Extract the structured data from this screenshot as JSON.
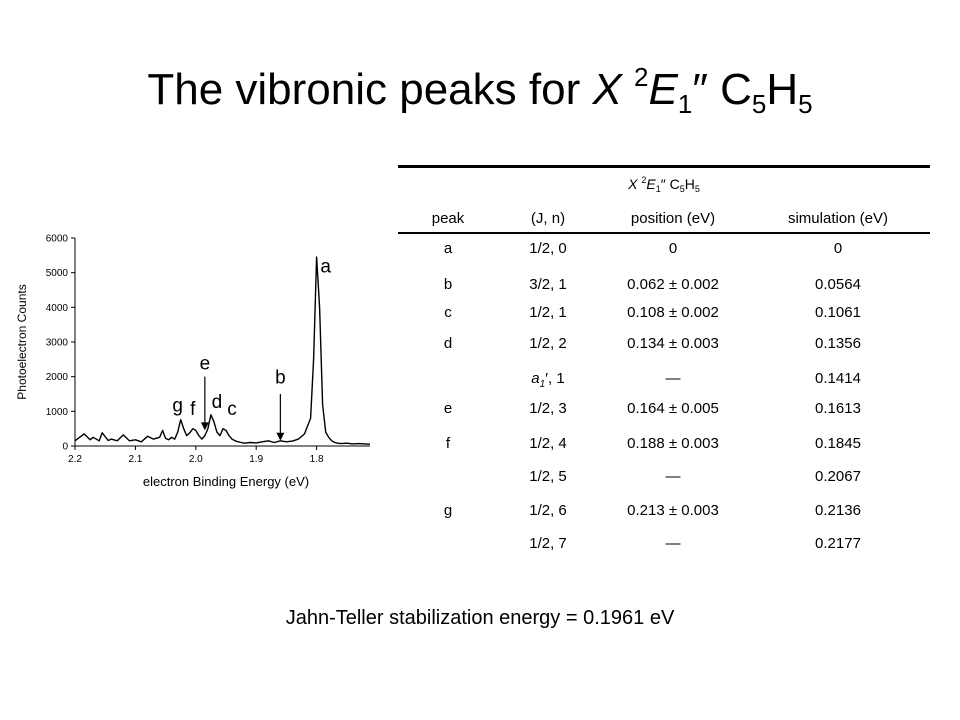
{
  "title": {
    "prefix": "The vibronic peaks for ",
    "state_letter": "X",
    "state_super": "2",
    "state_term": "E",
    "state_sub": "1",
    "state_prime": "″",
    "molecule_main": " C",
    "molecule_sub1": "5",
    "molecule_mid": "H",
    "molecule_sub2": "5"
  },
  "chart_data": {
    "type": "line",
    "title": "",
    "xlabel": "electron Binding Energy (eV)",
    "ylabel": "Photoelectron Counts",
    "xlim": [
      2.2,
      1.7
    ],
    "x_reversed": true,
    "ylim": [
      0,
      6000
    ],
    "x_ticks": [
      "2.2",
      "2.1",
      "2.0",
      "1.9",
      "1.8",
      "1.7"
    ],
    "y_ticks": [
      "0",
      "1000",
      "2000",
      "3000",
      "4000",
      "5000",
      "6000"
    ],
    "grid": false,
    "series": [
      {
        "x": [
          2.2,
          2.185,
          2.175,
          2.17,
          2.16,
          2.155,
          2.145,
          2.14,
          2.13,
          2.12,
          2.11,
          2.1,
          2.09,
          2.08,
          2.07,
          2.06,
          2.055,
          2.05,
          2.045,
          2.04,
          2.035,
          2.03,
          2.025,
          2.02,
          2.015,
          2.01,
          2.005,
          2.0,
          1.995,
          1.99,
          1.985,
          1.98,
          1.975,
          1.97,
          1.965,
          1.96,
          1.955,
          1.95,
          1.945,
          1.94,
          1.935,
          1.93,
          1.925,
          1.92,
          1.91,
          1.9,
          1.89,
          1.88,
          1.87,
          1.86,
          1.85,
          1.84,
          1.83,
          1.82,
          1.81,
          1.805,
          1.8,
          1.795,
          1.79,
          1.785,
          1.78,
          1.775,
          1.77,
          1.765,
          1.76,
          1.75,
          1.74,
          1.73,
          1.72,
          1.71,
          1.7
        ],
        "y": [
          150,
          350,
          180,
          250,
          150,
          380,
          160,
          200,
          150,
          320,
          150,
          180,
          120,
          280,
          200,
          250,
          450,
          220,
          180,
          250,
          200,
          400,
          760,
          500,
          300,
          380,
          500,
          450,
          300,
          200,
          300,
          500,
          900,
          700,
          400,
          300,
          500,
          450,
          300,
          200,
          150,
          120,
          100,
          80,
          100,
          90,
          120,
          150,
          100,
          150,
          120,
          140,
          200,
          350,
          800,
          2500,
          5450,
          4000,
          1200,
          400,
          250,
          150,
          100,
          80,
          70,
          80,
          60,
          70,
          60,
          50,
          50
        ]
      }
    ],
    "annotations": [
      {
        "label": "a",
        "x": 1.785,
        "y": 5000
      },
      {
        "label": "b",
        "x": 1.86,
        "y": 1800
      },
      {
        "label": "c",
        "x": 1.94,
        "y": 900
      },
      {
        "label": "d",
        "x": 1.965,
        "y": 1100
      },
      {
        "label": "e",
        "x": 1.985,
        "y": 2200
      },
      {
        "label": "f",
        "x": 2.005,
        "y": 900
      },
      {
        "label": "g",
        "x": 2.03,
        "y": 1000
      }
    ],
    "arrows": [
      {
        "name": "arrow-e",
        "x": 1.985,
        "y_from": 2000,
        "y_to": 450
      },
      {
        "name": "arrow-b",
        "x": 1.86,
        "y_from": 1500,
        "y_to": 150
      }
    ]
  },
  "table": {
    "caption": {
      "state_letter": "X",
      "state_super": "2",
      "state_term": "E",
      "state_sub": "1",
      "state_prime": "″",
      "molecule_main": " C",
      "molecule_sub1": "5",
      "molecule_mid": "H",
      "molecule_sub2": "5"
    },
    "headers": [
      "peak",
      "(J, n)",
      "position (eV)",
      "simulation (eV)"
    ],
    "rows": [
      {
        "peak": "a",
        "jn": "1/2, 0",
        "position": "0",
        "simulation": "0"
      },
      {
        "peak": "b",
        "jn": "3/2, 1",
        "position": "0.062 ± 0.002",
        "simulation": "0.0564"
      },
      {
        "peak": "c",
        "jn": "1/2, 1",
        "position": "0.108 ± 0.002",
        "simulation": "0.1061"
      },
      {
        "peak": "d",
        "jn": "1/2, 2",
        "position": "0.134 ± 0.003",
        "simulation": "0.1356"
      },
      {
        "peak": "",
        "jn_sym": "a",
        "jn_sub": "1",
        "jn_rest": "′, 1",
        "position": "—",
        "simulation": "0.1414"
      },
      {
        "peak": "e",
        "jn": "1/2, 3",
        "position": "0.164 ± 0.005",
        "simulation": "0.1613"
      },
      {
        "peak": "f",
        "jn": "1/2, 4",
        "position": "0.188 ± 0.003",
        "simulation": "0.1845"
      },
      {
        "peak": "",
        "jn": "1/2, 5",
        "position": "—",
        "simulation": "0.2067"
      },
      {
        "peak": "g",
        "jn": "1/2, 6",
        "position": "0.213 ± 0.003",
        "simulation": "0.2136"
      },
      {
        "peak": "",
        "jn": "1/2, 7",
        "position": "—",
        "simulation": "0.2177"
      }
    ]
  },
  "footer": "Jahn-Teller stabilization energy = 0.1961 eV"
}
